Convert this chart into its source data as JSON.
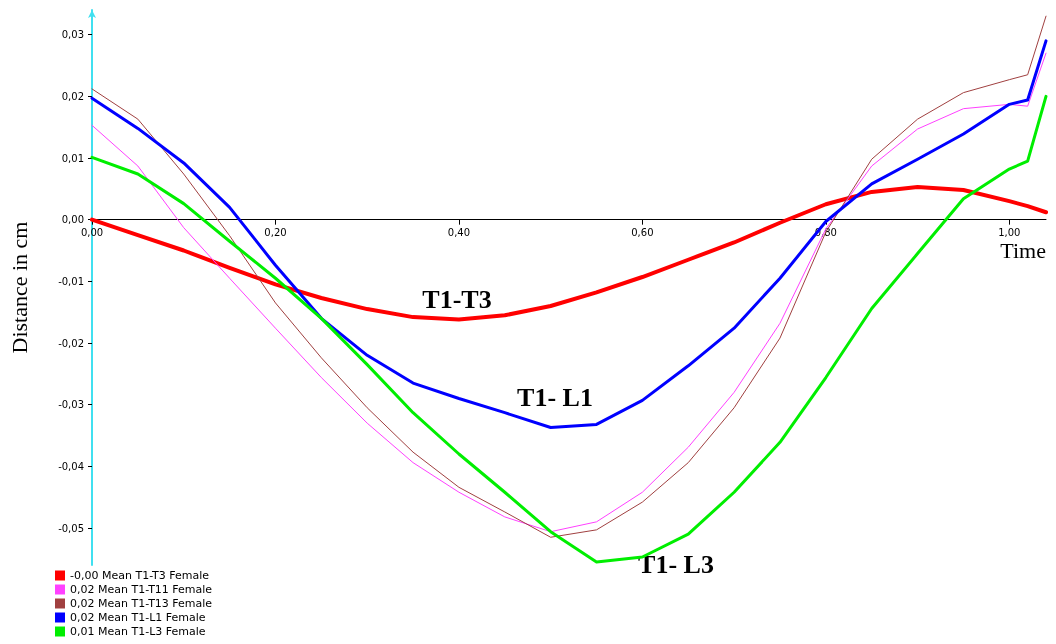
{
  "chart_data": {
    "type": "line",
    "xlabel": "Time",
    "ylabel": "Distance in cm",
    "x": [
      0,
      0.05,
      0.1,
      0.15,
      0.2,
      0.25,
      0.3,
      0.35,
      0.4,
      0.45,
      0.5,
      0.55,
      0.6,
      0.65,
      0.7,
      0.75,
      0.8,
      0.85,
      0.9,
      0.95,
      1.0,
      1.02,
      1.04
    ],
    "series": [
      {
        "name": "-0,00 Mean T1-T3 Female",
        "color": "#ff0000",
        "values": [
          0,
          -0.0025,
          -0.005,
          -0.0078,
          -0.0105,
          -0.0127,
          -0.0145,
          -0.0158,
          -0.0162,
          -0.0155,
          -0.014,
          -0.0118,
          -0.0093,
          -0.0065,
          -0.0037,
          -0.0005,
          0.0025,
          0.0045,
          0.0053,
          0.0048,
          0.003,
          0.0022,
          0.0012
        ]
      },
      {
        "name": "0,02 Mean T1-T11 Female",
        "color": "#ff40ff",
        "values": [
          0.0153,
          0.0087,
          -0.0013,
          -0.0095,
          -0.0176,
          -0.0256,
          -0.033,
          -0.0394,
          -0.0442,
          -0.0482,
          -0.0506,
          -0.049,
          -0.0442,
          -0.0369,
          -0.028,
          -0.0168,
          -0.0015,
          0.0087,
          0.0147,
          0.018,
          0.0187,
          0.0184,
          0.027
        ]
      },
      {
        "name": "0,02 Mean T1-T13 Female",
        "color": "#a04040",
        "values": [
          0.0212,
          0.0163,
          0.0074,
          -0.0026,
          -0.0135,
          -0.0224,
          -0.0305,
          -0.0377,
          -0.0434,
          -0.0474,
          -0.0515,
          -0.0503,
          -0.0458,
          -0.0394,
          -0.0305,
          -0.0192,
          -0.002,
          0.0098,
          0.0163,
          0.0206,
          0.0227,
          0.0235,
          0.033
        ]
      },
      {
        "name": "0,02 Mean T1-L1 Female",
        "color": "#0000ff",
        "values": [
          0.0197,
          0.0148,
          0.0092,
          0.002,
          -0.0074,
          -0.016,
          -0.022,
          -0.0265,
          -0.029,
          -0.0313,
          -0.0337,
          -0.0332,
          -0.0293,
          -0.0237,
          -0.0176,
          -0.0095,
          -0.0003,
          0.0058,
          0.0098,
          0.0139,
          0.0187,
          0.0194,
          0.029
        ]
      },
      {
        "name": "0,01 Mean T1-L3 Female",
        "color": "#00ee00",
        "values": [
          0.0101,
          0.0074,
          0.0026,
          -0.0035,
          -0.0095,
          -0.016,
          -0.0235,
          -0.0313,
          -0.038,
          -0.0442,
          -0.0506,
          -0.0555,
          -0.0547,
          -0.051,
          -0.0442,
          -0.0361,
          -0.0256,
          -0.0144,
          -0.0055,
          0.0034,
          0.0082,
          0.0095,
          0.02
        ]
      }
    ],
    "xlim": [
      0,
      1.04
    ],
    "xticks": [
      {
        "value": 0,
        "label": "0,00"
      },
      {
        "value": 0.2,
        "label": "0,20"
      },
      {
        "value": 0.4,
        "label": "0,40"
      },
      {
        "value": 0.6,
        "label": "0,60"
      },
      {
        "value": 0.8,
        "label": "0,80"
      },
      {
        "value": 1.0,
        "label": "1,00"
      }
    ],
    "ylim": [
      -0.056,
      0.034
    ],
    "yticks": [
      {
        "value": -0.05,
        "label": "-0,05"
      },
      {
        "value": -0.04,
        "label": "-0,04"
      },
      {
        "value": -0.03,
        "label": "-0,03"
      },
      {
        "value": -0.02,
        "label": "-0,02"
      },
      {
        "value": -0.01,
        "label": "-0,01"
      },
      {
        "value": 0,
        "label": "0,00"
      },
      {
        "value": 0.01,
        "label": "0,01"
      },
      {
        "value": 0.02,
        "label": "0,02"
      },
      {
        "value": 0.03,
        "label": "0,03"
      }
    ],
    "annotations": [
      "T1-T3",
      "T1- L1",
      "T1- L3"
    ],
    "legend": "bottom left",
    "grid": false,
    "marker": "none",
    "line_style": "solid"
  }
}
